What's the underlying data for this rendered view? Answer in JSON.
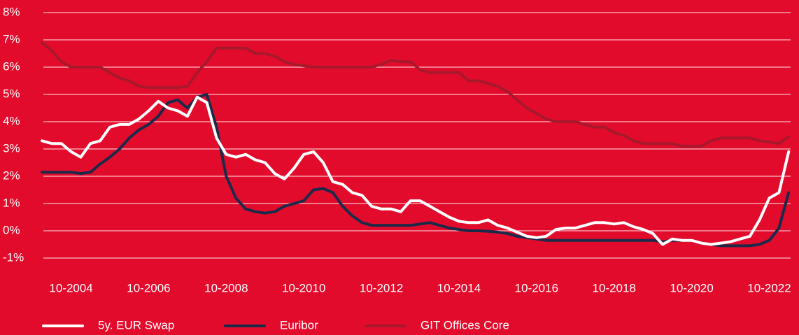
{
  "chart_data": {
    "type": "line",
    "categories": [
      null,
      null,
      null,
      "10-2004",
      null,
      null,
      null,
      null,
      null,
      null,
      null,
      "10-2006",
      null,
      null,
      null,
      null,
      null,
      null,
      null,
      "10-2008",
      null,
      null,
      null,
      null,
      null,
      null,
      null,
      "10-2010",
      null,
      null,
      null,
      null,
      null,
      null,
      null,
      "10-2012",
      null,
      null,
      null,
      null,
      null,
      null,
      null,
      "10-2014",
      null,
      null,
      null,
      null,
      null,
      null,
      null,
      "10-2016",
      null,
      null,
      null,
      null,
      null,
      null,
      null,
      "10-2018",
      null,
      null,
      null,
      null,
      null,
      null,
      null,
      "10-2020",
      null,
      null,
      null,
      null,
      null,
      null,
      null,
      "10-2022",
      null,
      null
    ],
    "series": [
      {
        "name": "5y. EUR Swap",
        "color": "#ffffff",
        "values": [
          3.3,
          3.2,
          3.2,
          2.9,
          2.7,
          3.2,
          3.3,
          3.8,
          3.9,
          3.9,
          4.1,
          4.4,
          4.75,
          4.5,
          4.4,
          4.2,
          4.9,
          4.7,
          3.4,
          2.8,
          2.7,
          2.8,
          2.6,
          2.5,
          2.1,
          1.9,
          2.3,
          2.8,
          2.9,
          2.5,
          1.8,
          1.7,
          1.4,
          1.3,
          0.9,
          0.8,
          0.8,
          0.7,
          1.1,
          1.1,
          0.9,
          0.7,
          0.5,
          0.35,
          0.3,
          0.3,
          0.4,
          0.2,
          0.1,
          -0.05,
          -0.2,
          -0.25,
          -0.2,
          0.05,
          0.1,
          0.1,
          0.2,
          0.3,
          0.3,
          0.25,
          0.3,
          0.15,
          0.05,
          -0.1,
          -0.5,
          -0.3,
          -0.35,
          -0.35,
          -0.45,
          -0.5,
          -0.45,
          -0.4,
          -0.3,
          -0.2,
          0.4,
          1.2,
          1.4,
          2.9
        ]
      },
      {
        "name": "Euribor",
        "color": "#1c2a4a",
        "values": [
          2.15,
          2.15,
          2.15,
          2.15,
          2.1,
          2.15,
          2.45,
          2.7,
          3.0,
          3.4,
          3.7,
          3.9,
          4.2,
          4.7,
          4.8,
          4.5,
          4.9,
          5.0,
          3.8,
          2.0,
          1.2,
          0.8,
          0.7,
          0.65,
          0.7,
          0.9,
          1.0,
          1.1,
          1.5,
          1.55,
          1.4,
          0.9,
          0.55,
          0.3,
          0.2,
          0.2,
          0.2,
          0.2,
          0.2,
          0.25,
          0.3,
          0.2,
          0.1,
          0.05,
          0.0,
          0.0,
          -0.02,
          -0.05,
          -0.1,
          -0.2,
          -0.25,
          -0.3,
          -0.35,
          -0.35,
          -0.35,
          -0.35,
          -0.35,
          -0.35,
          -0.35,
          -0.35,
          -0.35,
          -0.35,
          -0.35,
          -0.35,
          -0.4,
          -0.35,
          -0.35,
          -0.35,
          -0.45,
          -0.5,
          -0.55,
          -0.55,
          -0.55,
          -0.55,
          -0.5,
          -0.35,
          0.1,
          1.4
        ]
      },
      {
        "name": "GIT Offices Core",
        "color": "#a8182c",
        "values": [
          6.9,
          6.6,
          6.2,
          6.0,
          6.0,
          6.0,
          6.0,
          5.8,
          5.6,
          5.5,
          5.3,
          5.25,
          5.25,
          5.25,
          5.25,
          5.3,
          5.8,
          6.2,
          6.7,
          6.7,
          6.7,
          6.7,
          6.5,
          6.5,
          6.4,
          6.2,
          6.1,
          6.05,
          6.0,
          6.0,
          6.0,
          6.0,
          6.0,
          6.0,
          6.0,
          6.1,
          6.25,
          6.2,
          6.2,
          5.9,
          5.8,
          5.8,
          5.8,
          5.8,
          5.5,
          5.5,
          5.4,
          5.3,
          5.1,
          4.8,
          4.5,
          4.3,
          4.1,
          4.0,
          4.0,
          4.0,
          3.9,
          3.8,
          3.8,
          3.6,
          3.5,
          3.3,
          3.2,
          3.2,
          3.2,
          3.2,
          3.1,
          3.1,
          3.1,
          3.3,
          3.4,
          3.4,
          3.4,
          3.4,
          3.3,
          3.25,
          3.2,
          3.45
        ]
      }
    ],
    "ylim": [
      -1.5,
      8.3
    ],
    "yticks": [
      {
        "value": -1,
        "label": "-1%"
      },
      {
        "value": 0,
        "label": "0%"
      },
      {
        "value": 1,
        "label": "1%"
      },
      {
        "value": 2,
        "label": "2%"
      },
      {
        "value": 3,
        "label": "3%"
      },
      {
        "value": 4,
        "label": "4%"
      },
      {
        "value": 5,
        "label": "5%"
      },
      {
        "value": 6,
        "label": "6%"
      },
      {
        "value": 7,
        "label": "7%"
      },
      {
        "value": 8,
        "label": "8%"
      }
    ],
    "grid": true,
    "legend": "bottom"
  }
}
